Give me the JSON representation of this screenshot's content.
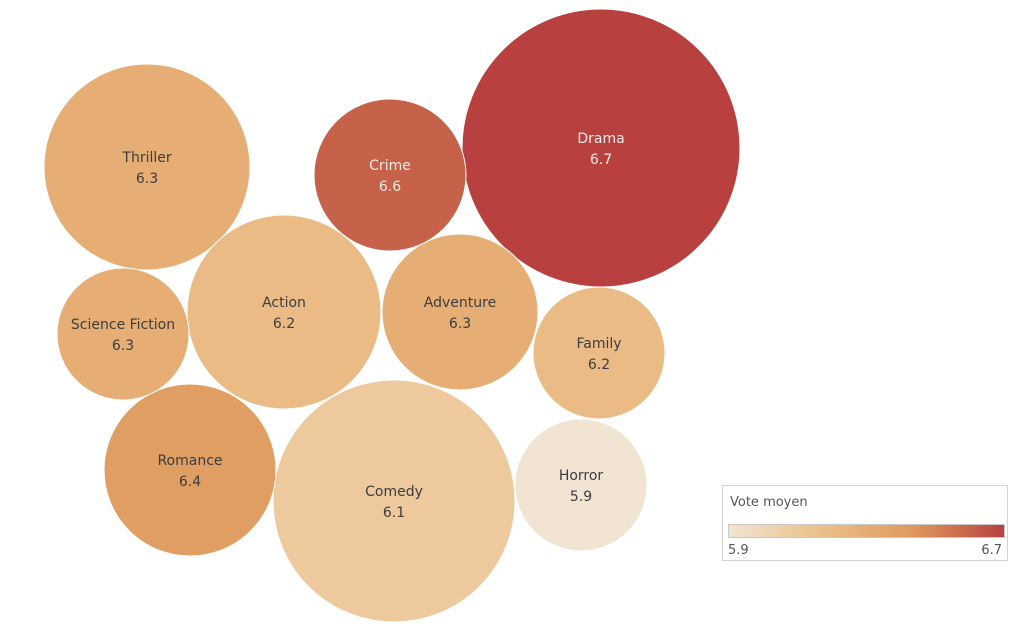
{
  "chart_data": {
    "type": "bubble",
    "title": "",
    "size_measure": "",
    "color_measure": "Vote moyen",
    "bubbles": [
      {
        "label": "Drama",
        "value": 6.7
      },
      {
        "label": "Comedy",
        "value": 6.1
      },
      {
        "label": "Thriller",
        "value": 6.3
      },
      {
        "label": "Action",
        "value": 6.2
      },
      {
        "label": "Romance",
        "value": 6.4
      },
      {
        "label": "Adventure",
        "value": 6.3
      },
      {
        "label": "Crime",
        "value": 6.6
      },
      {
        "label": "Science Fiction",
        "value": 6.3
      },
      {
        "label": "Family",
        "value": 6.2
      },
      {
        "label": "Horror",
        "value": 5.9
      }
    ],
    "legend": {
      "title": "Vote moyen",
      "min_label": "5.9",
      "max_label": "6.7",
      "min": 5.9,
      "max": 6.7,
      "colors": [
        "#f1e4d2",
        "#ebc08b",
        "#e0995d",
        "#b8413f"
      ],
      "placement": "bottom-right"
    }
  }
}
